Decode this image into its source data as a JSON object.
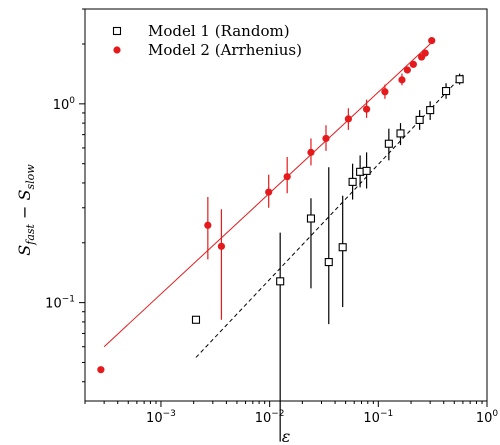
{
  "chart_data": {
    "type": "scatter",
    "xscale": "log",
    "yscale": "log",
    "xlim": [
      0.0002,
      1
    ],
    "ylim": [
      0.032,
      3.0
    ],
    "xlabel": "ε",
    "ylabel": {
      "base": "S",
      "sub1": "fast",
      "minus": " − ",
      "base2": "S",
      "sub2": "slow"
    },
    "xticks": [
      {
        "value": 0.001,
        "base": "10",
        "exp": "−3"
      },
      {
        "value": 0.01,
        "base": "10",
        "exp": "−2"
      },
      {
        "value": 0.1,
        "base": "10",
        "exp": "−1"
      },
      {
        "value": 1,
        "base": "10",
        "exp": "0"
      }
    ],
    "yticks": [
      {
        "value": 0.1,
        "base": "10",
        "exp": "−1"
      },
      {
        "value": 1,
        "base": "10",
        "exp": "0"
      }
    ],
    "legend_position": "top-left",
    "series": [
      {
        "name": "Model 1 (Random)",
        "marker": "open-square",
        "color": "#000000",
        "fit": {
          "style": "dashed",
          "x0": 0.0021,
          "x1": 0.6,
          "y0": 0.053,
          "y1": 1.4
        },
        "points": [
          {
            "x": 0.0021,
            "y": 0.082,
            "lo": null,
            "hi": null
          },
          {
            "x": 0.0125,
            "y": 0.128,
            "lo": 0.02,
            "hi": 0.225
          },
          {
            "x": 0.024,
            "y": 0.265,
            "lo": 0.118,
            "hi": 0.335
          },
          {
            "x": 0.035,
            "y": 0.16,
            "lo": 0.078,
            "hi": 0.48
          },
          {
            "x": 0.047,
            "y": 0.19,
            "lo": 0.095,
            "hi": 0.345
          },
          {
            "x": 0.058,
            "y": 0.405,
            "lo": 0.33,
            "hi": 0.5
          },
          {
            "x": 0.068,
            "y": 0.455,
            "lo": 0.38,
            "hi": 0.55
          },
          {
            "x": 0.078,
            "y": 0.46,
            "lo": 0.375,
            "hi": 0.57
          },
          {
            "x": 0.125,
            "y": 0.63,
            "lo": 0.52,
            "hi": 0.75
          },
          {
            "x": 0.16,
            "y": 0.71,
            "lo": 0.62,
            "hi": 0.8
          },
          {
            "x": 0.24,
            "y": 0.83,
            "lo": 0.74,
            "hi": 0.93
          },
          {
            "x": 0.3,
            "y": 0.93,
            "lo": 0.83,
            "hi": 1.03
          },
          {
            "x": 0.42,
            "y": 1.16,
            "lo": 1.06,
            "hi": 1.27
          },
          {
            "x": 0.56,
            "y": 1.33,
            "lo": 1.25,
            "hi": 1.42
          }
        ]
      },
      {
        "name": "Model 2 (Arrhenius)",
        "marker": "filled-circle",
        "color": "#e41a1c",
        "fit": {
          "style": "solid",
          "x0": 0.0003,
          "x1": 0.33,
          "y0": 0.06,
          "y1": 2.1
        },
        "points": [
          {
            "x": 0.00028,
            "y": 0.046,
            "lo": null,
            "hi": null
          },
          {
            "x": 0.0027,
            "y": 0.245,
            "lo": 0.165,
            "hi": 0.34
          },
          {
            "x": 0.0036,
            "y": 0.192,
            "lo": 0.082,
            "hi": 0.295
          },
          {
            "x": 0.0098,
            "y": 0.36,
            "lo": 0.3,
            "hi": 0.44
          },
          {
            "x": 0.0145,
            "y": 0.43,
            "lo": 0.355,
            "hi": 0.54
          },
          {
            "x": 0.024,
            "y": 0.57,
            "lo": 0.49,
            "hi": 0.67
          },
          {
            "x": 0.033,
            "y": 0.67,
            "lo": 0.58,
            "hi": 0.78
          },
          {
            "x": 0.053,
            "y": 0.84,
            "lo": 0.74,
            "hi": 0.95
          },
          {
            "x": 0.078,
            "y": 0.94,
            "lo": 0.85,
            "hi": 1.05
          },
          {
            "x": 0.115,
            "y": 1.15,
            "lo": 1.06,
            "hi": 1.25
          },
          {
            "x": 0.165,
            "y": 1.32,
            "lo": 1.24,
            "hi": 1.42
          },
          {
            "x": 0.185,
            "y": 1.48,
            "lo": null,
            "hi": null
          },
          {
            "x": 0.21,
            "y": 1.58,
            "lo": null,
            "hi": null
          },
          {
            "x": 0.25,
            "y": 1.72,
            "lo": null,
            "hi": null
          },
          {
            "x": 0.27,
            "y": 1.8,
            "lo": null,
            "hi": null
          },
          {
            "x": 0.31,
            "y": 2.08,
            "lo": null,
            "hi": null
          }
        ]
      }
    ]
  }
}
